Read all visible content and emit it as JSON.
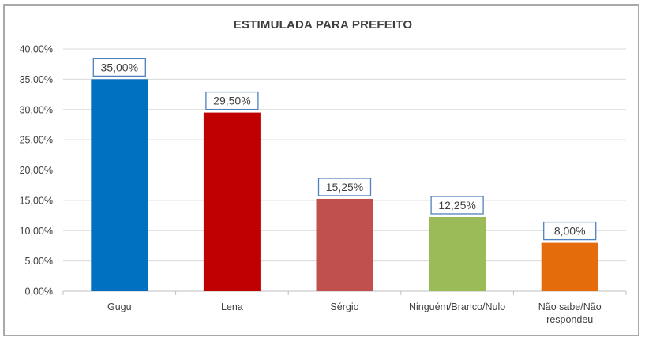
{
  "chart_data": {
    "type": "bar",
    "title": "ESTIMULADA PARA PREFEITO",
    "xlabel": "",
    "ylabel": "",
    "categories": [
      [
        "Gugu"
      ],
      [
        "Lena"
      ],
      [
        "Sérgio"
      ],
      [
        "Ninguém/Branco/Nulo"
      ],
      [
        "Não sabe/Não",
        "respondeu"
      ]
    ],
    "values": [
      35.0,
      29.5,
      15.25,
      12.25,
      8.0
    ],
    "data_labels": [
      "35,00%",
      "29,50%",
      "15,25%",
      "12,25%",
      "8,00%"
    ],
    "bar_colors": [
      "#0070c0",
      "#c00000",
      "#c0504d",
      "#9bbb59",
      "#e46c0a"
    ],
    "ylim": [
      0,
      40
    ],
    "yticks": [
      0,
      5,
      10,
      15,
      20,
      25,
      30,
      35,
      40
    ],
    "ytick_labels": [
      "0,00%",
      "5,00%",
      "10,00%",
      "15,00%",
      "20,00%",
      "25,00%",
      "30,00%",
      "35,00%",
      "40,00%"
    ],
    "grid": true,
    "legend": "none",
    "gridline_color": "#d9d9d9",
    "label_border_color": "#4f81bd"
  }
}
